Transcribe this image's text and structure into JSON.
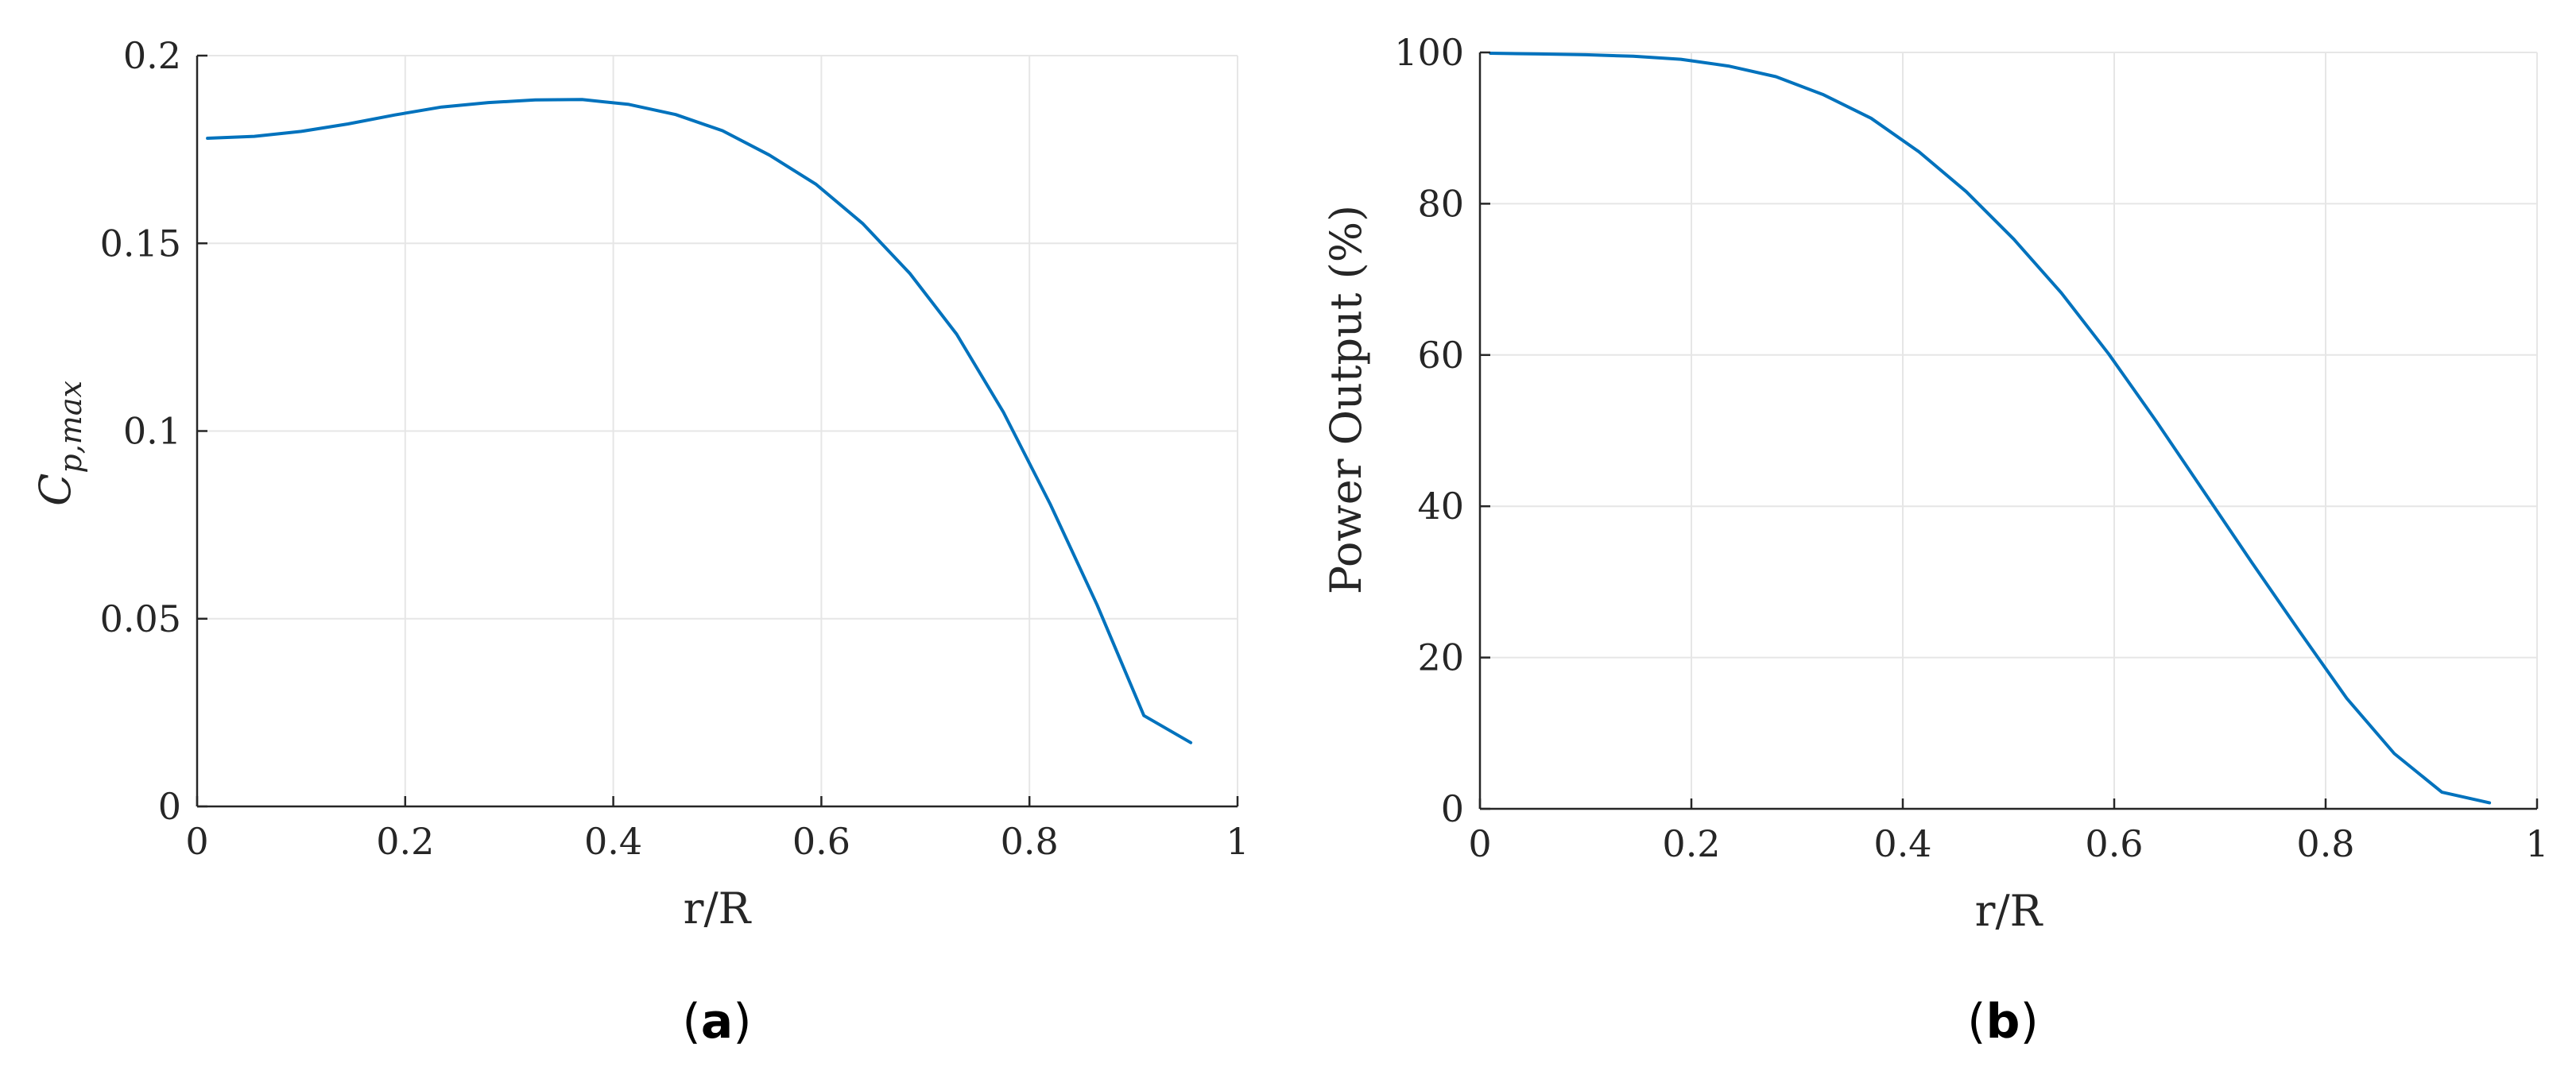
{
  "colors": {
    "series": "#0072BD"
  },
  "chart_data": [
    {
      "type": "line",
      "panel_label": "a",
      "xlabel": "r/R",
      "ylabel_main": "C",
      "ylabel_sub": "p,max",
      "xlim": [
        0,
        1
      ],
      "ylim": [
        0,
        0.2
      ],
      "xticks": [
        0,
        0.2,
        0.4,
        0.6,
        0.8,
        1
      ],
      "xtick_labels": [
        "0",
        "0.2",
        "0.4",
        "0.6",
        "0.8",
        "1"
      ],
      "yticks": [
        0,
        0.05,
        0.1,
        0.15,
        0.2
      ],
      "ytick_labels": [
        "0",
        "0.05",
        "0.1",
        "0.15",
        "0.2"
      ],
      "grid": true,
      "series": [
        {
          "x": [
            0.01,
            0.055,
            0.1,
            0.145,
            0.19,
            0.235,
            0.28,
            0.325,
            0.37,
            0.415,
            0.46,
            0.505,
            0.55,
            0.595,
            0.64,
            0.685,
            0.73,
            0.775,
            0.82,
            0.865,
            0.91,
            0.955
          ],
          "y": [
            0.178,
            0.1785,
            0.1798,
            0.1818,
            0.1842,
            0.1863,
            0.1875,
            0.1882,
            0.1883,
            0.187,
            0.1843,
            0.18,
            0.1735,
            0.1657,
            0.1552,
            0.142,
            0.1258,
            0.105,
            0.0805,
            0.0537,
            0.0242,
            0.017
          ]
        }
      ]
    },
    {
      "type": "line",
      "panel_label": "b",
      "xlabel": "r/R",
      "ylabel": "Power Output (%)",
      "xlim": [
        0,
        1
      ],
      "ylim": [
        0,
        100
      ],
      "xticks": [
        0,
        0.2,
        0.4,
        0.6,
        0.8,
        1
      ],
      "xtick_labels": [
        "0",
        "0.2",
        "0.4",
        "0.6",
        "0.8",
        "1"
      ],
      "yticks": [
        0,
        20,
        40,
        60,
        80,
        100
      ],
      "ytick_labels": [
        "0",
        "20",
        "40",
        "60",
        "80",
        "100"
      ],
      "grid": true,
      "series": [
        {
          "x": [
            0.01,
            0.055,
            0.1,
            0.145,
            0.19,
            0.235,
            0.28,
            0.325,
            0.37,
            0.415,
            0.46,
            0.505,
            0.55,
            0.595,
            0.64,
            0.685,
            0.73,
            0.775,
            0.82,
            0.865,
            0.91,
            0.955
          ],
          "y": [
            99.9,
            99.8,
            99.7,
            99.5,
            99.1,
            98.2,
            96.8,
            94.4,
            91.3,
            86.9,
            81.6,
            75.3,
            68.2,
            60.1,
            51.2,
            41.9,
            32.6,
            23.5,
            14.6,
            7.3,
            2.2,
            0.8
          ]
        }
      ]
    }
  ]
}
